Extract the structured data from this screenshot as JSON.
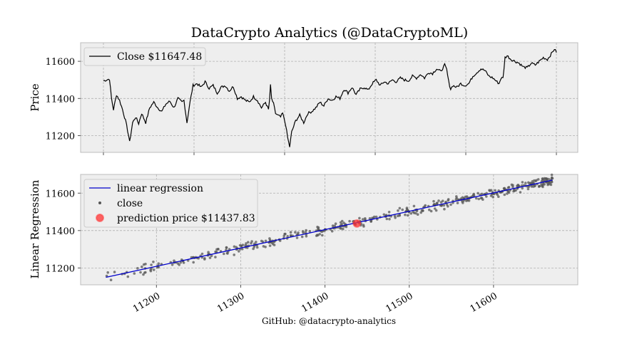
{
  "figure": {
    "title": "DataCrypto Analytics (@DataCryptoML)",
    "credit": "GitHub: @datacrypto-analytics"
  },
  "chart_data": [
    {
      "type": "line",
      "ylabel": "Price",
      "ylim": [
        11110,
        11700
      ],
      "yticks": [
        11200,
        11400,
        11600
      ],
      "xticks_unlabeled": 6,
      "grid": true,
      "legend": {
        "placement": "top-left",
        "entries": [
          "Close $11647.48"
        ]
      },
      "series": [
        {
          "name": "Close $11647.48",
          "color": "#000000",
          "anchors": [
            [
              0,
              11495
            ],
            [
              3,
              11500
            ],
            [
              6,
              11505
            ],
            [
              8,
              11400
            ],
            [
              10,
              11340
            ],
            [
              13,
              11420
            ],
            [
              16,
              11390
            ],
            [
              19,
              11340
            ],
            [
              22,
              11280
            ],
            [
              25,
              11200
            ],
            [
              26,
              11165
            ],
            [
              29,
              11270
            ],
            [
              32,
              11300
            ],
            [
              35,
              11265
            ],
            [
              38,
              11320
            ],
            [
              42,
              11270
            ],
            [
              46,
              11350
            ],
            [
              50,
              11380
            ],
            [
              54,
              11350
            ],
            [
              58,
              11330
            ],
            [
              62,
              11370
            ],
            [
              66,
              11385
            ],
            [
              70,
              11350
            ],
            [
              74,
              11400
            ],
            [
              78,
              11380
            ],
            [
              80,
              11390
            ],
            [
              83,
              11270
            ],
            [
              86,
              11380
            ],
            [
              89,
              11470
            ],
            [
              93,
              11480
            ],
            [
              97,
              11460
            ],
            [
              101,
              11490
            ],
            [
              105,
              11455
            ],
            [
              109,
              11470
            ],
            [
              113,
              11430
            ],
            [
              117,
              11460
            ],
            [
              121,
              11470
            ],
            [
              125,
              11440
            ],
            [
              129,
              11465
            ],
            [
              133,
              11400
            ],
            [
              137,
              11410
            ],
            [
              141,
              11390
            ],
            [
              145,
              11380
            ],
            [
              149,
              11410
            ],
            [
              153,
              11390
            ],
            [
              157,
              11350
            ],
            [
              161,
              11380
            ],
            [
              164,
              11340
            ],
            [
              165,
              11390
            ],
            [
              166,
              11470
            ],
            [
              167,
              11400
            ],
            [
              169,
              11370
            ],
            [
              171,
              11320
            ],
            [
              173,
              11310
            ],
            [
              176,
              11300
            ],
            [
              178,
              11320
            ],
            [
              181,
              11260
            ],
            [
              183,
              11190
            ],
            [
              185,
              11140
            ],
            [
              187,
              11220
            ],
            [
              191,
              11280
            ],
            [
              195,
              11310
            ],
            [
              199,
              11270
            ],
            [
              203,
              11320
            ],
            [
              207,
              11330
            ],
            [
              211,
              11350
            ],
            [
              215,
              11380
            ],
            [
              219,
              11360
            ],
            [
              223,
              11400
            ],
            [
              227,
              11390
            ],
            [
              231,
              11410
            ],
            [
              235,
              11400
            ],
            [
              239,
              11450
            ],
            [
              243,
              11430
            ],
            [
              247,
              11460
            ],
            [
              251,
              11420
            ],
            [
              255,
              11450
            ],
            [
              259,
              11460
            ],
            [
              263,
              11445
            ],
            [
              267,
              11480
            ],
            [
              271,
              11500
            ],
            [
              275,
              11470
            ],
            [
              279,
              11490
            ],
            [
              283,
              11480
            ],
            [
              287,
              11500
            ],
            [
              291,
              11490
            ],
            [
              295,
              11510
            ],
            [
              299,
              11500
            ],
            [
              303,
              11495
            ],
            [
              307,
              11520
            ],
            [
              311,
              11510
            ],
            [
              315,
              11530
            ],
            [
              319,
              11510
            ],
            [
              323,
              11540
            ],
            [
              327,
              11535
            ],
            [
              331,
              11560
            ],
            [
              335,
              11545
            ],
            [
              339,
              11580
            ],
            [
              341,
              11555
            ],
            [
              343,
              11490
            ],
            [
              345,
              11450
            ],
            [
              347,
              11470
            ],
            [
              351,
              11460
            ],
            [
              355,
              11480
            ],
            [
              359,
              11470
            ],
            [
              363,
              11480
            ],
            [
              367,
              11520
            ],
            [
              371,
              11540
            ],
            [
              375,
              11560
            ],
            [
              379,
              11550
            ],
            [
              383,
              11520
            ],
            [
              387,
              11510
            ],
            [
              391,
              11490
            ],
            [
              393,
              11480
            ],
            [
              395,
              11510
            ],
            [
              397,
              11510
            ],
            [
              399,
              11620
            ],
            [
              401,
              11630
            ],
            [
              405,
              11610
            ],
            [
              409,
              11600
            ],
            [
              413,
              11590
            ],
            [
              417,
              11570
            ],
            [
              421,
              11565
            ],
            [
              425,
              11590
            ],
            [
              429,
              11580
            ],
            [
              433,
              11600
            ],
            [
              437,
              11620
            ],
            [
              441,
              11610
            ],
            [
              445,
              11640
            ],
            [
              448,
              11667
            ],
            [
              450,
              11647
            ]
          ]
        }
      ]
    },
    {
      "type": "scatter",
      "ylabel": "Linear Regression",
      "xlim": [
        11110,
        11700
      ],
      "ylim": [
        11110,
        11700
      ],
      "xticks": [
        11200,
        11300,
        11400,
        11500,
        11600
      ],
      "yticks": [
        11200,
        11400,
        11600
      ],
      "grid": true,
      "legend": {
        "placement": "top-left",
        "entries": [
          "linear regression",
          "close",
          "prediction price $11437.83"
        ]
      },
      "regression_line": {
        "name": "linear regression",
        "color": "#0000cc",
        "x": [
          11140,
          11670
        ],
        "y": [
          11150,
          11670
        ]
      },
      "scatter_series": {
        "name": "close",
        "color": "#555555",
        "x_range": [
          11140,
          11670
        ],
        "slope": 0.98,
        "intercept": 11150,
        "count": 450
      },
      "prediction": {
        "name": "prediction price $11437.83",
        "color": "#ff3333",
        "x": 11437.83,
        "y": 11437.83
      }
    }
  ]
}
